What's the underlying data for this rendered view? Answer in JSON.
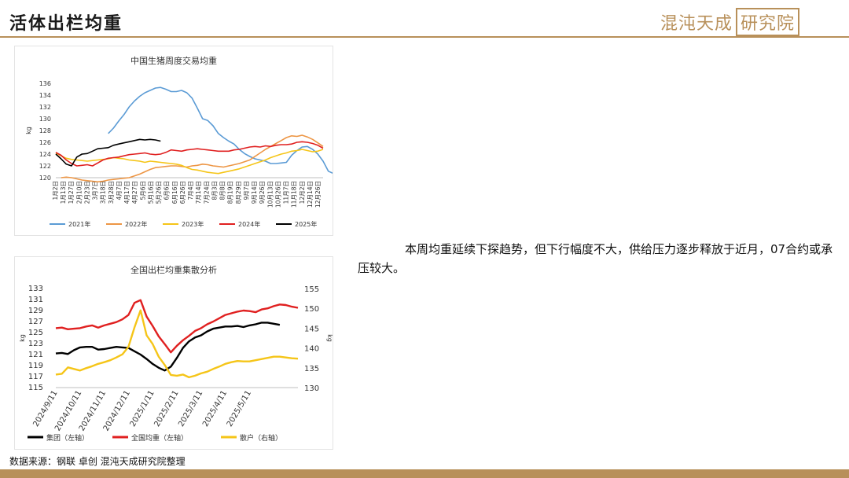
{
  "header": {
    "title": "活体出栏均重",
    "logo_text": "混沌天成",
    "logo_box_text": "研究院"
  },
  "commentary": "本周均重延续下探趋势，但下行幅度不大，供给压力逐步释放于近月，07合约或承压较大。",
  "footer": {
    "source": "数据来源：钢联 卓创 混沌天成研究院整理"
  },
  "colors": {
    "accent": "#b8905a"
  },
  "chart_data": [
    {
      "type": "line",
      "title": "中国生猪周度交易均重",
      "ylabel": "kg",
      "ylim": [
        120,
        136
      ],
      "yticks": [
        120,
        122,
        124,
        126,
        128,
        130,
        132,
        134,
        136
      ],
      "x_labels": [
        "1月2日",
        "1月13日",
        "1月27日",
        "2月10日",
        "2月23日",
        "3月7日",
        "3月18日",
        "3月28日",
        "4月7日",
        "4月17日",
        "4月27日",
        "5月6日",
        "5月16日",
        "5月26日",
        "6月6日",
        "6月16日",
        "6月26日",
        "7月4日",
        "7月14日",
        "7月24日",
        "8月3日",
        "8月8日",
        "8月19日",
        "8月29日",
        "9月7日",
        "9月14日",
        "9月26日",
        "10月13日",
        "10月26日",
        "11月7日",
        "11月18日",
        "12月2日",
        "12月14日",
        "12月26日"
      ],
      "week_count": 52,
      "series": [
        {
          "name": "2021年",
          "color": "#5b9bd5",
          "start": 10,
          "values": [
            127.5,
            128.4,
            129.6,
            130.7,
            132.0,
            133.0,
            133.8,
            134.4,
            134.8,
            135.2,
            135.3,
            135.0,
            134.6,
            134.6,
            134.8,
            134.4,
            133.5,
            131.8,
            130.0,
            129.7,
            128.8,
            127.5,
            126.8,
            126.2,
            125.7,
            124.8,
            124.1,
            123.6,
            123.2,
            123.0,
            122.8,
            122.4,
            122.4,
            122.5,
            122.6,
            123.8,
            124.6,
            125.2,
            125.3,
            124.8,
            124.0,
            122.8,
            121.1,
            120.7
          ]
        },
        {
          "name": "2022年",
          "color": "#ed9645",
          "start": 1,
          "values": [
            120.0,
            120.1,
            120.0,
            119.8,
            119.6,
            119.5,
            119.4,
            119.3,
            119.4,
            119.6,
            119.7,
            119.8,
            119.9,
            120.0,
            120.3,
            120.6,
            121.0,
            121.4,
            121.7,
            121.8,
            121.9,
            122.0,
            122.0,
            121.9,
            121.8,
            122.0,
            122.1,
            122.3,
            122.2,
            122.0,
            121.9,
            121.8,
            122.0,
            122.2,
            122.4,
            122.7,
            123.0,
            123.6,
            124.2,
            124.8,
            125.3,
            125.8,
            126.3,
            126.8,
            127.1,
            127.0,
            127.2,
            126.9,
            126.5,
            125.9,
            125.3
          ]
        },
        {
          "name": "2023年",
          "color": "#f5c518",
          "start": 0,
          "values": [
            124.2,
            123.7,
            123.3,
            123.1,
            123.0,
            122.9,
            122.8,
            122.9,
            123.0,
            123.1,
            123.2,
            123.4,
            123.3,
            123.2,
            123.0,
            122.9,
            122.8,
            122.6,
            122.8,
            122.7,
            122.6,
            122.5,
            122.4,
            122.3,
            122.1,
            121.7,
            121.4,
            121.3,
            121.1,
            120.9,
            120.8,
            120.7,
            120.9,
            121.1,
            121.3,
            121.5,
            121.8,
            122.1,
            122.4,
            122.7,
            123.0,
            123.4,
            123.7,
            124.0,
            124.2,
            124.5,
            124.6,
            124.8,
            124.6,
            124.4,
            124.5,
            124.8
          ]
        },
        {
          "name": "2024年",
          "color": "#e02020",
          "start": 0,
          "values": [
            124.3,
            123.8,
            123.0,
            122.4,
            122.0,
            122.1,
            122.2,
            122.0,
            122.5,
            123.0,
            123.3,
            123.4,
            123.5,
            123.7,
            123.9,
            124.0,
            124.1,
            124.2,
            124.0,
            123.9,
            124.0,
            124.3,
            124.7,
            124.6,
            124.5,
            124.7,
            124.8,
            124.9,
            124.8,
            124.7,
            124.6,
            124.5,
            124.5,
            124.5,
            124.7,
            124.8,
            125.0,
            125.2,
            125.3,
            125.2,
            125.4,
            125.3,
            125.5,
            125.6,
            125.6,
            125.7,
            126.0,
            126.1,
            126.0,
            125.8,
            125.5,
            125.0
          ]
        },
        {
          "name": "2025年",
          "color": "#000000",
          "start": 0,
          "values": [
            124.0,
            123.2,
            122.3,
            122.0,
            123.5,
            124.0,
            124.1,
            124.5,
            124.9,
            125.0,
            125.1,
            125.5,
            125.7,
            125.9,
            126.1,
            126.3,
            126.5,
            126.4,
            126.5,
            126.4,
            126.2
          ]
        }
      ],
      "legend_position": "bottom",
      "grid": false
    },
    {
      "type": "line",
      "title": "全国出栏均重集散分析",
      "ylabel_left": "kg",
      "ylabel_right": "kg",
      "ylim_left": [
        115,
        133
      ],
      "ylim_right": [
        130,
        155
      ],
      "yticks_left": [
        115,
        117,
        119,
        121,
        123,
        125,
        127,
        129,
        131,
        133
      ],
      "yticks_right": [
        130,
        135,
        140,
        145,
        150,
        155
      ],
      "x_labels": [
        "2024/9/11",
        "2024/10/11",
        "2024/11/11",
        "2024/12/11",
        "2025/1/11",
        "2025/2/11",
        "2025/3/11",
        "2025/4/11",
        "2025/5/11"
      ],
      "x_label_positions": [
        0,
        4,
        8,
        12,
        16,
        20,
        24,
        28,
        32
      ],
      "series": [
        {
          "name": "集团（左轴）",
          "axis": "left",
          "color": "#000000",
          "values": [
            121.2,
            121.3,
            121.1,
            121.8,
            122.3,
            122.4,
            122.4,
            121.9,
            122.0,
            122.2,
            122.4,
            122.3,
            122.2,
            121.6,
            121.0,
            120.2,
            119.3,
            118.6,
            118.1,
            118.8,
            120.4,
            122.2,
            123.4,
            124.1,
            124.5,
            125.2,
            125.7,
            125.9,
            126.1,
            126.1,
            126.2,
            126.0,
            126.3,
            126.5,
            126.8,
            126.8,
            126.6,
            126.4
          ]
        },
        {
          "name": "全国均重（左轴）",
          "axis": "left",
          "color": "#e02020",
          "values": [
            125.8,
            125.9,
            125.6,
            125.7,
            125.8,
            126.1,
            126.3,
            125.9,
            126.3,
            126.6,
            126.9,
            127.4,
            128.2,
            130.4,
            130.9,
            127.9,
            126.2,
            124.3,
            122.9,
            121.4,
            122.6,
            123.6,
            124.4,
            125.3,
            125.8,
            126.5,
            127.0,
            127.6,
            128.2,
            128.5,
            128.8,
            129.0,
            128.9,
            128.7,
            129.2,
            129.4,
            129.8,
            130.1,
            130.0,
            129.7,
            129.5
          ]
        },
        {
          "name": "散户（右轴）",
          "axis": "right",
          "color": "#f5c518",
          "values": [
            133.3,
            133.5,
            135.1,
            134.7,
            134.3,
            134.9,
            135.4,
            136.0,
            136.4,
            136.9,
            137.6,
            138.4,
            140.3,
            145.2,
            149.5,
            143.2,
            141.0,
            137.8,
            135.7,
            133.2,
            133.0,
            133.3,
            132.6,
            133.0,
            133.6,
            134.0,
            134.7,
            135.3,
            136.0,
            136.4,
            136.7,
            136.6,
            136.6,
            136.9,
            137.2,
            137.5,
            137.8,
            137.8,
            137.6,
            137.4,
            137.3
          ]
        }
      ],
      "legend_position": "bottom",
      "grid": false
    }
  ]
}
